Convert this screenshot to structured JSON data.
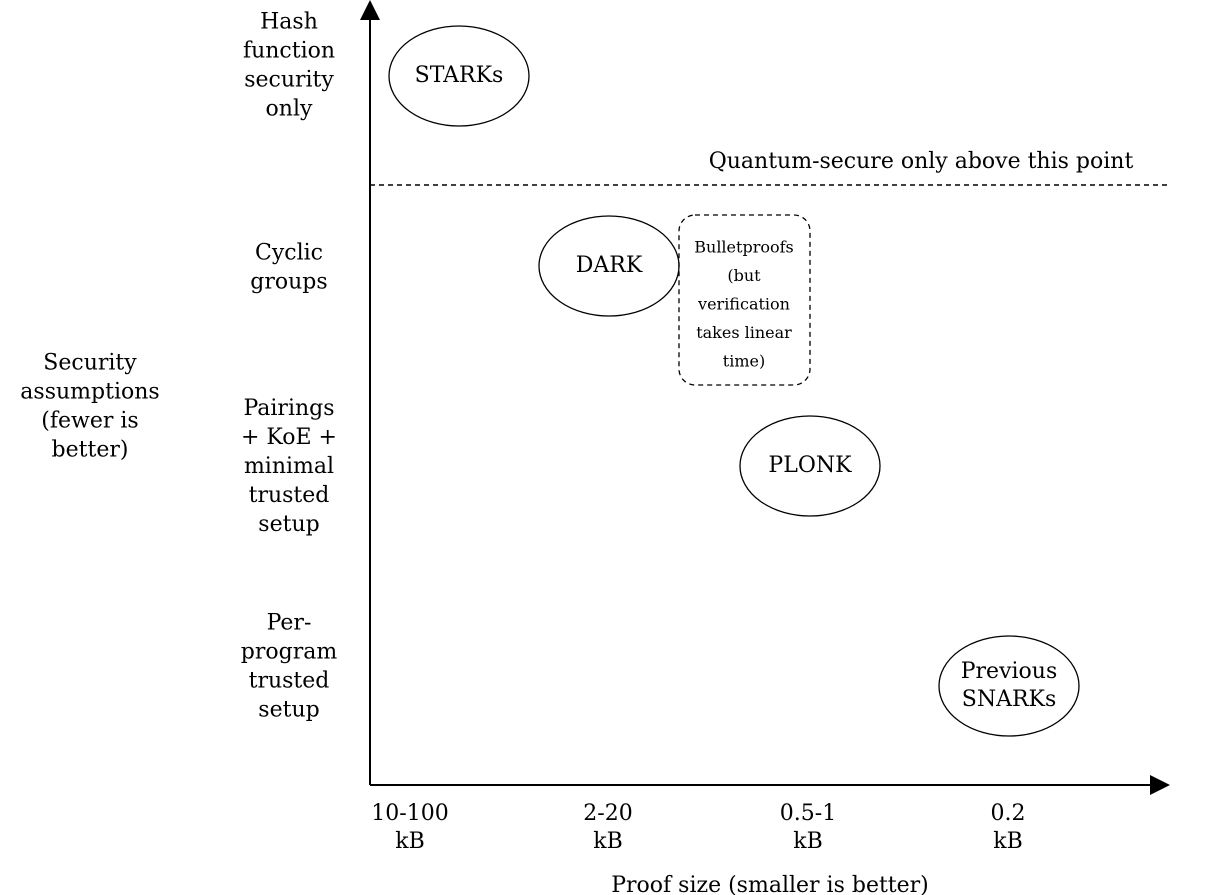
{
  "y_axis": {
    "title": [
      "Security",
      "assumptions",
      "(fewer is",
      "better)"
    ],
    "categories": [
      [
        "Hash",
        "function",
        "security",
        "only"
      ],
      [
        "Cyclic",
        "groups"
      ],
      [
        "Pairings",
        "+ KoE +",
        "minimal",
        "trusted",
        "setup"
      ],
      [
        "Per-",
        "program",
        "trusted",
        "setup"
      ]
    ]
  },
  "x_axis": {
    "title": [
      "Proof size (smaller is better)"
    ],
    "categories": [
      [
        "10-100",
        "kB"
      ],
      [
        "2-20",
        "kB"
      ],
      [
        "0.5-1",
        "kB"
      ],
      [
        "0.2",
        "kB"
      ]
    ]
  },
  "threshold": {
    "label": [
      "Quantum-secure only above this point"
    ]
  },
  "nodes": [
    {
      "label": [
        "STARKs"
      ]
    },
    {
      "label": [
        "DARK"
      ]
    },
    {
      "label": [
        "PLONK"
      ]
    },
    {
      "label": [
        "Previous",
        "SNARKs"
      ]
    },
    {
      "label": [
        "Bulletproofs",
        "(but",
        "verification",
        "takes linear",
        "time)"
      ]
    }
  ]
}
